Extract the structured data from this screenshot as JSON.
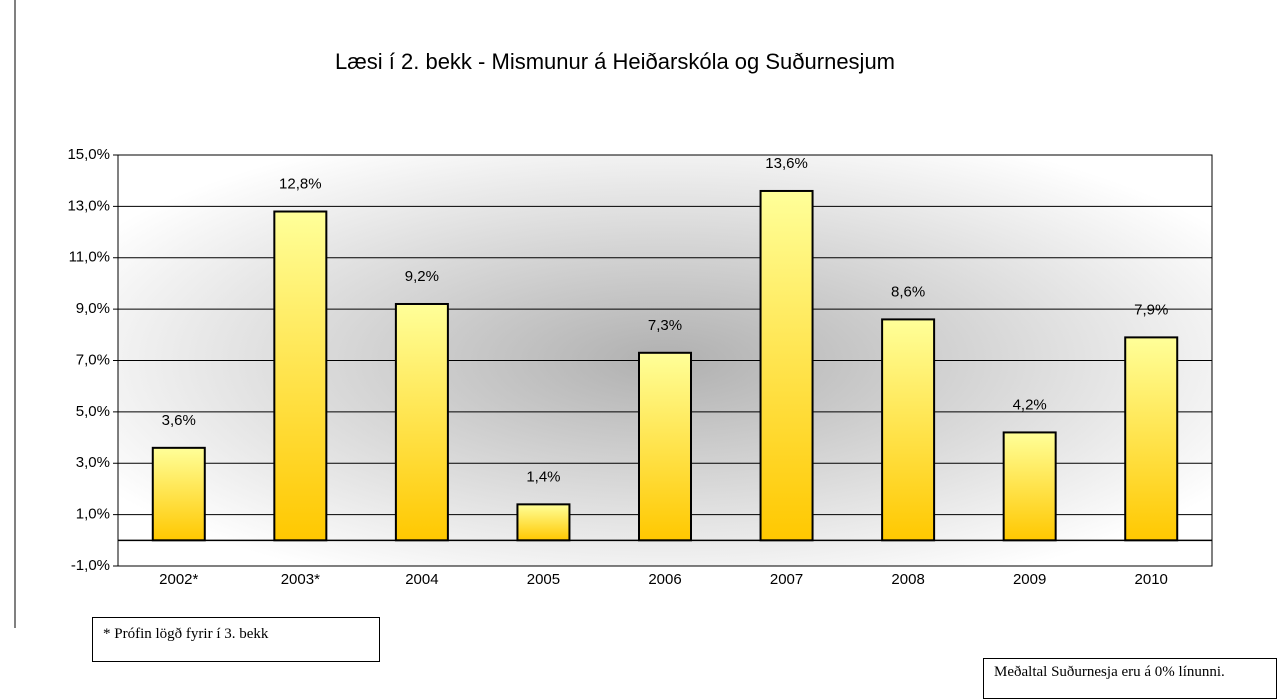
{
  "chart_data": {
    "type": "bar",
    "title": "Læsi í 2. bekk - Mismunur á Heiðarskóla og Suðurnesjum",
    "categories": [
      "2002*",
      "2003*",
      "2004",
      "2005",
      "2006",
      "2007",
      "2008",
      "2009",
      "2010"
    ],
    "values": [
      3.6,
      12.8,
      9.2,
      1.4,
      7.3,
      13.6,
      8.6,
      4.2,
      7.9
    ],
    "value_labels": [
      "3,6%",
      "12,8%",
      "9,2%",
      "1,4%",
      "7,3%",
      "13,6%",
      "8,6%",
      "4,2%",
      "7,9%"
    ],
    "color": "#ffcc00",
    "ylim": [
      -1,
      15
    ],
    "yticks": [
      {
        "value": -1,
        "label": "-1,0%"
      },
      {
        "value": 1,
        "label": "1,0%"
      },
      {
        "value": 3,
        "label": "3,0%"
      },
      {
        "value": 5,
        "label": "5,0%"
      },
      {
        "value": 7,
        "label": "7,0%"
      },
      {
        "value": 9,
        "label": "9,0%"
      },
      {
        "value": 11,
        "label": "11,0%"
      },
      {
        "value": 13,
        "label": "13,0%"
      },
      {
        "value": 15,
        "label": "15,0%"
      }
    ],
    "grid": true,
    "annotations": [
      "* Prófin lögð fyrir í 3. bekk",
      "Meðaltal Suðurnesja eru á 0% línunni."
    ]
  }
}
